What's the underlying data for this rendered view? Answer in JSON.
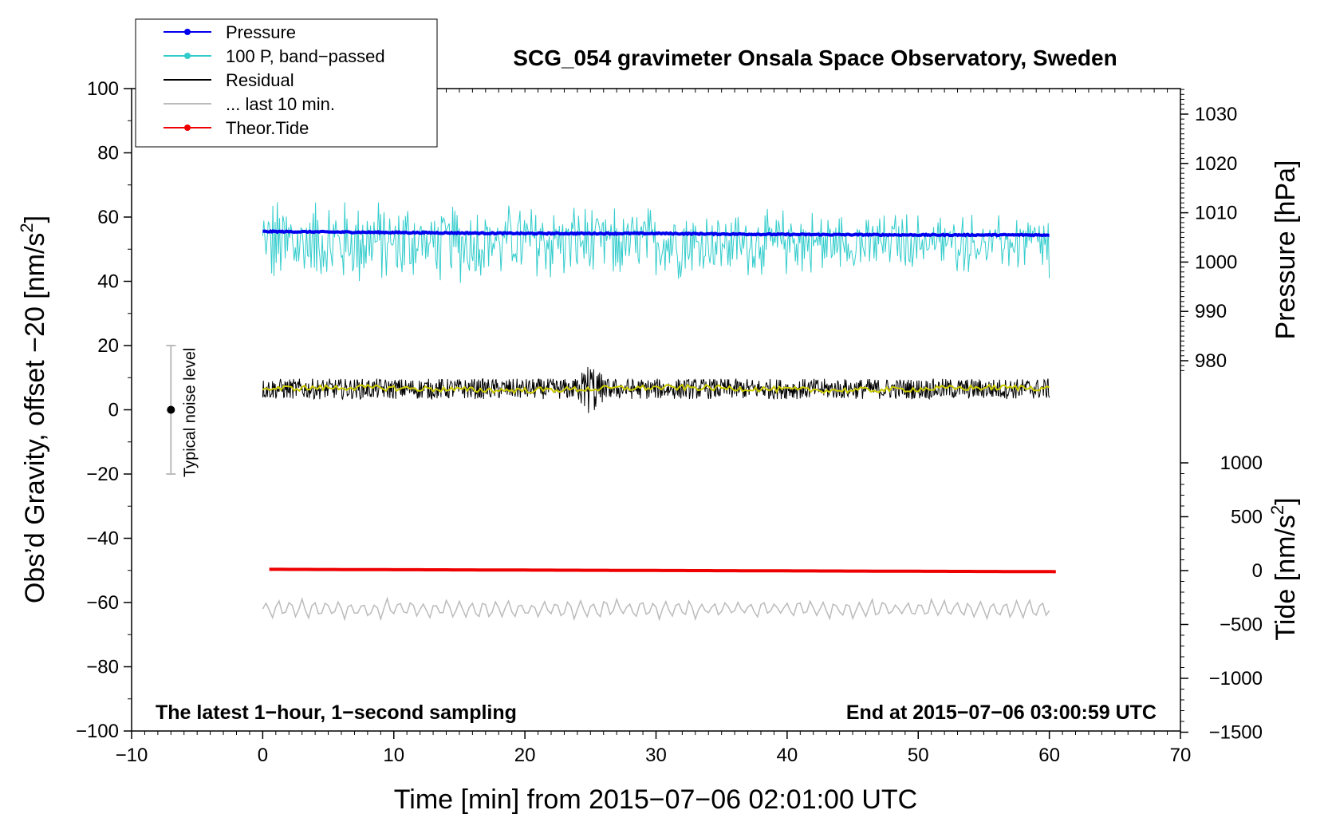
{
  "chart_data": {
    "type": "line",
    "title": "SCG_054 gravimeter Onsala Space Observatory, Sweden",
    "xlabel": "Time [min] from 2015−07−06 02:01:00 UTC",
    "ylabel_left_prefix": "Obs’d Gravity, offset −20 [nm/s",
    "ylabel_left_suffix": "]",
    "ylabel_pressure": "Pressure [hPa]",
    "ylabel_tide_prefix": "Tide [nm/s",
    "ylabel_tide_suffix": "]",
    "superscript": "2",
    "xlim": [
      -10,
      70
    ],
    "ylim": [
      -100,
      100
    ],
    "pressure_lim": [
      970,
      1036.5
    ],
    "tide_lim": [
      -1500,
      1500
    ],
    "x_ticks": [
      -10,
      0,
      10,
      20,
      30,
      40,
      50,
      60,
      70
    ],
    "x_tick_labels": [
      "−10",
      "0",
      "10",
      "20",
      "30",
      "40",
      "50",
      "60",
      "70"
    ],
    "y_ticks": [
      -100,
      -80,
      -60,
      -40,
      -20,
      0,
      20,
      40,
      60,
      80,
      100
    ],
    "y_tick_labels": [
      "−100",
      "−80",
      "−60",
      "−40",
      "−20",
      "0",
      "20",
      "40",
      "60",
      "80",
      "100"
    ],
    "pressure_ticks": [
      980,
      990,
      1000,
      1010,
      1020,
      1030
    ],
    "pressure_tick_labels": [
      "980",
      "990",
      "1000",
      "1010",
      "1020",
      "1030"
    ],
    "tide_ticks": [
      -1500,
      -1000,
      -500,
      0,
      500,
      1000
    ],
    "tide_tick_labels": [
      "−1500",
      "−1000",
      "−500",
      "0",
      "500",
      "1000"
    ],
    "note_left": "The latest 1−hour, 1−second sampling",
    "note_right": "End at 2015−07−06 03:00:59 UTC",
    "noise_bar": {
      "x": -7,
      "center": 0,
      "low": -20,
      "high": 20,
      "label": "Typical noise level"
    },
    "legend": [
      {
        "label": "Pressure",
        "color": "#0000ee",
        "marker": true
      },
      {
        "label": "100 P, band−passed",
        "color": "#33cccc",
        "marker": true
      },
      {
        "label": "Residual",
        "color": "#000000",
        "marker": false
      },
      {
        "label": "... last 10 min.",
        "color": "#bbbbbb",
        "marker": false
      },
      {
        "label": "Theor.Tide",
        "color": "#ee0000",
        "marker": true
      }
    ],
    "series": [
      {
        "name": "Pressure",
        "axis": "pressure",
        "color": "#0000ee",
        "x": [
          0,
          10,
          20,
          30,
          40,
          50,
          60
        ],
        "values": [
          1006.2,
          1006.0,
          1005.8,
          1005.8,
          1005.6,
          1005.5,
          1005.5
        ]
      },
      {
        "name": "100 P, band-passed",
        "axis": "gravity",
        "color": "#33cccc",
        "x": [
          0,
          60
        ],
        "mean": 52,
        "amplitude": [
          25,
          68
        ],
        "end_value": 41
      },
      {
        "name": "Residual",
        "axis": "gravity",
        "color": "#000000",
        "x": [
          0,
          60
        ],
        "mean": 6.5,
        "range": [
          5,
          11
        ],
        "event_minute": 25,
        "event_range": [
          -1,
          17
        ]
      },
      {
        "name": "Residual smoothed",
        "axis": "gravity",
        "color": "#cccc00",
        "x": [
          0,
          60
        ],
        "mean": 6.5
      },
      {
        "name": "... last 10 min.",
        "axis": "gravity",
        "color": "#bbbbbb",
        "x": [
          0,
          60
        ],
        "mean": -62,
        "range": [
          -66,
          -58
        ]
      },
      {
        "name": "Theor.Tide",
        "axis": "tide",
        "color": "#ee0000",
        "x": [
          0.5,
          60.5
        ],
        "values": [
          12,
          -10
        ]
      }
    ]
  }
}
